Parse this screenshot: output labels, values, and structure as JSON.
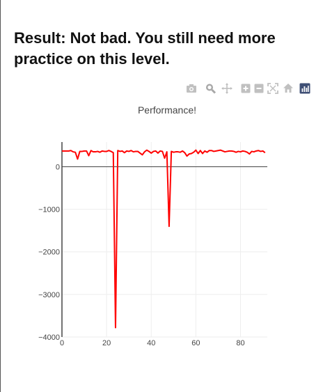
{
  "result": {
    "line1": "Result: Not bad. You still need more",
    "line2": "practice on this level."
  },
  "modebar": {
    "icons": [
      "camera-icon",
      "zoom-icon",
      "pan-icon",
      "zoom-in-icon",
      "zoom-out-icon",
      "autoscale-icon",
      "reset-axes-icon",
      "plotly-logo-icon"
    ]
  },
  "colors": {
    "line": "#ff0000",
    "modebar_icon": "#c0c0c0",
    "logo": "#3f4f75",
    "zero_line": "#444444",
    "grid": "#eeeeee"
  },
  "chart_data": {
    "type": "line",
    "title": "Performance!",
    "xlabel": "",
    "ylabel": "",
    "xlim": [
      0,
      92
    ],
    "ylim": [
      -4000,
      580
    ],
    "xticks": [
      0,
      20,
      40,
      60,
      80
    ],
    "yticks": [
      -4000,
      -3000,
      -2000,
      -1000,
      0
    ],
    "ytick_labels": [
      "−4000",
      "−3000",
      "−2000",
      "−1000",
      "0"
    ],
    "grid": true,
    "series": [
      {
        "values": [
          370,
          370,
          370,
          370,
          380,
          350,
          340,
          180,
          360,
          360,
          370,
          370,
          260,
          380,
          350,
          350,
          360,
          340,
          370,
          360,
          360,
          380,
          360,
          330,
          -3780,
          380,
          360,
          370,
          330,
          370,
          360,
          380,
          350,
          360,
          360,
          320,
          280,
          350,
          390,
          360,
          320,
          360,
          370,
          320,
          370,
          360,
          200,
          350,
          -1400,
          360,
          340,
          350,
          350,
          340,
          370,
          330,
          250,
          300,
          310,
          340,
          390,
          310,
          380,
          310,
          370,
          340,
          380,
          380,
          360,
          370,
          380,
          390,
          370,
          350,
          360,
          370,
          370,
          360,
          340,
          360,
          350,
          370,
          360,
          340,
          300,
          360,
          350,
          370,
          380,
          360,
          370,
          330
        ]
      }
    ]
  }
}
